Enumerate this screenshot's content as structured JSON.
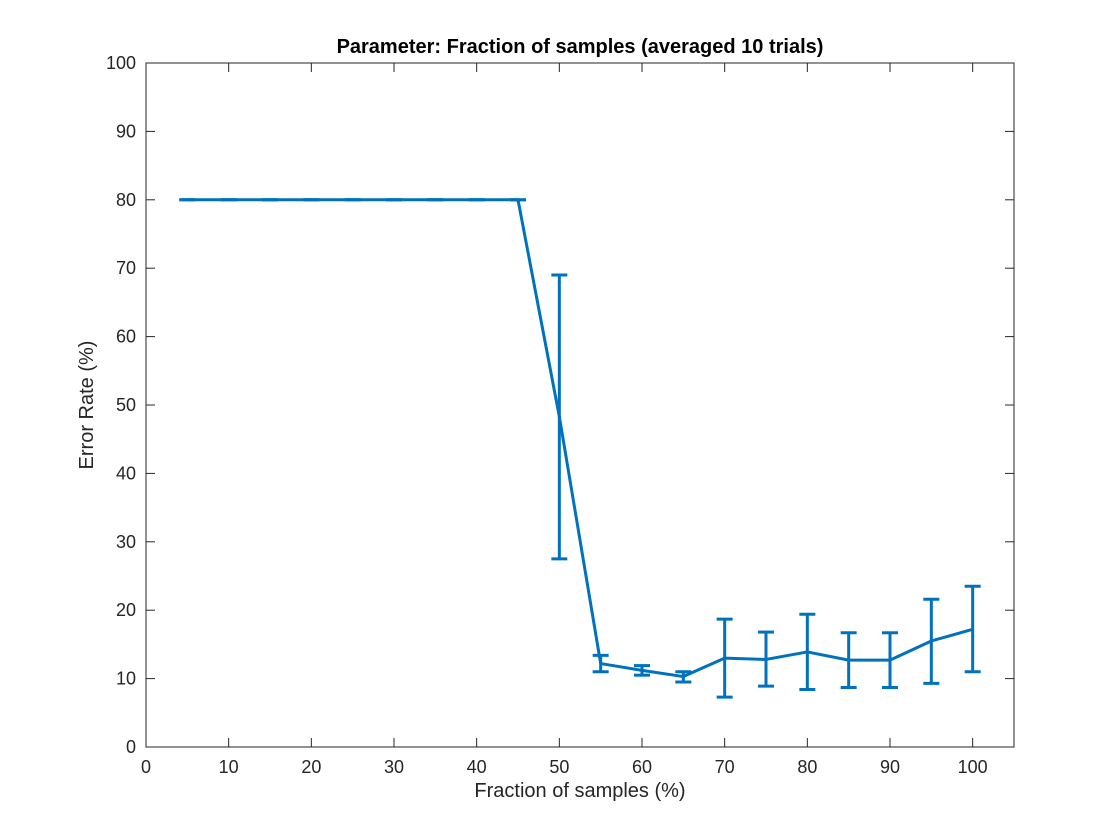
{
  "chart_data": {
    "type": "line",
    "title": "Parameter: Fraction of samples (averaged 10 trials)",
    "xlabel": "Fraction of samples (%)",
    "ylabel": "Error Rate (%)",
    "xlim": [
      0,
      105
    ],
    "ylim": [
      0,
      100
    ],
    "xticks": [
      0,
      10,
      20,
      30,
      40,
      50,
      60,
      70,
      80,
      90,
      100
    ],
    "yticks": [
      0,
      10,
      20,
      30,
      40,
      50,
      60,
      70,
      80,
      90,
      100
    ],
    "grid": false,
    "color": "#0072BD",
    "x": [
      5,
      10,
      15,
      20,
      25,
      30,
      35,
      40,
      45,
      50,
      55,
      60,
      65,
      70,
      75,
      80,
      85,
      90,
      95,
      100
    ],
    "y": [
      80,
      80,
      80,
      80,
      80,
      80,
      80,
      80,
      80,
      48.3,
      12.2,
      11.2,
      10.3,
      13.0,
      12.8,
      13.9,
      12.7,
      12.7,
      15.5,
      17.2
    ],
    "error_low": [
      80,
      80,
      80,
      80,
      80,
      80,
      80,
      80,
      80,
      27.5,
      11.0,
      10.5,
      9.5,
      7.3,
      8.9,
      8.4,
      8.7,
      8.7,
      9.3,
      11.0
    ],
    "error_high": [
      80,
      80,
      80,
      80,
      80,
      80,
      80,
      80,
      80,
      69.0,
      13.4,
      11.9,
      11.0,
      18.7,
      16.8,
      19.4,
      16.7,
      16.7,
      21.6,
      23.5
    ]
  }
}
